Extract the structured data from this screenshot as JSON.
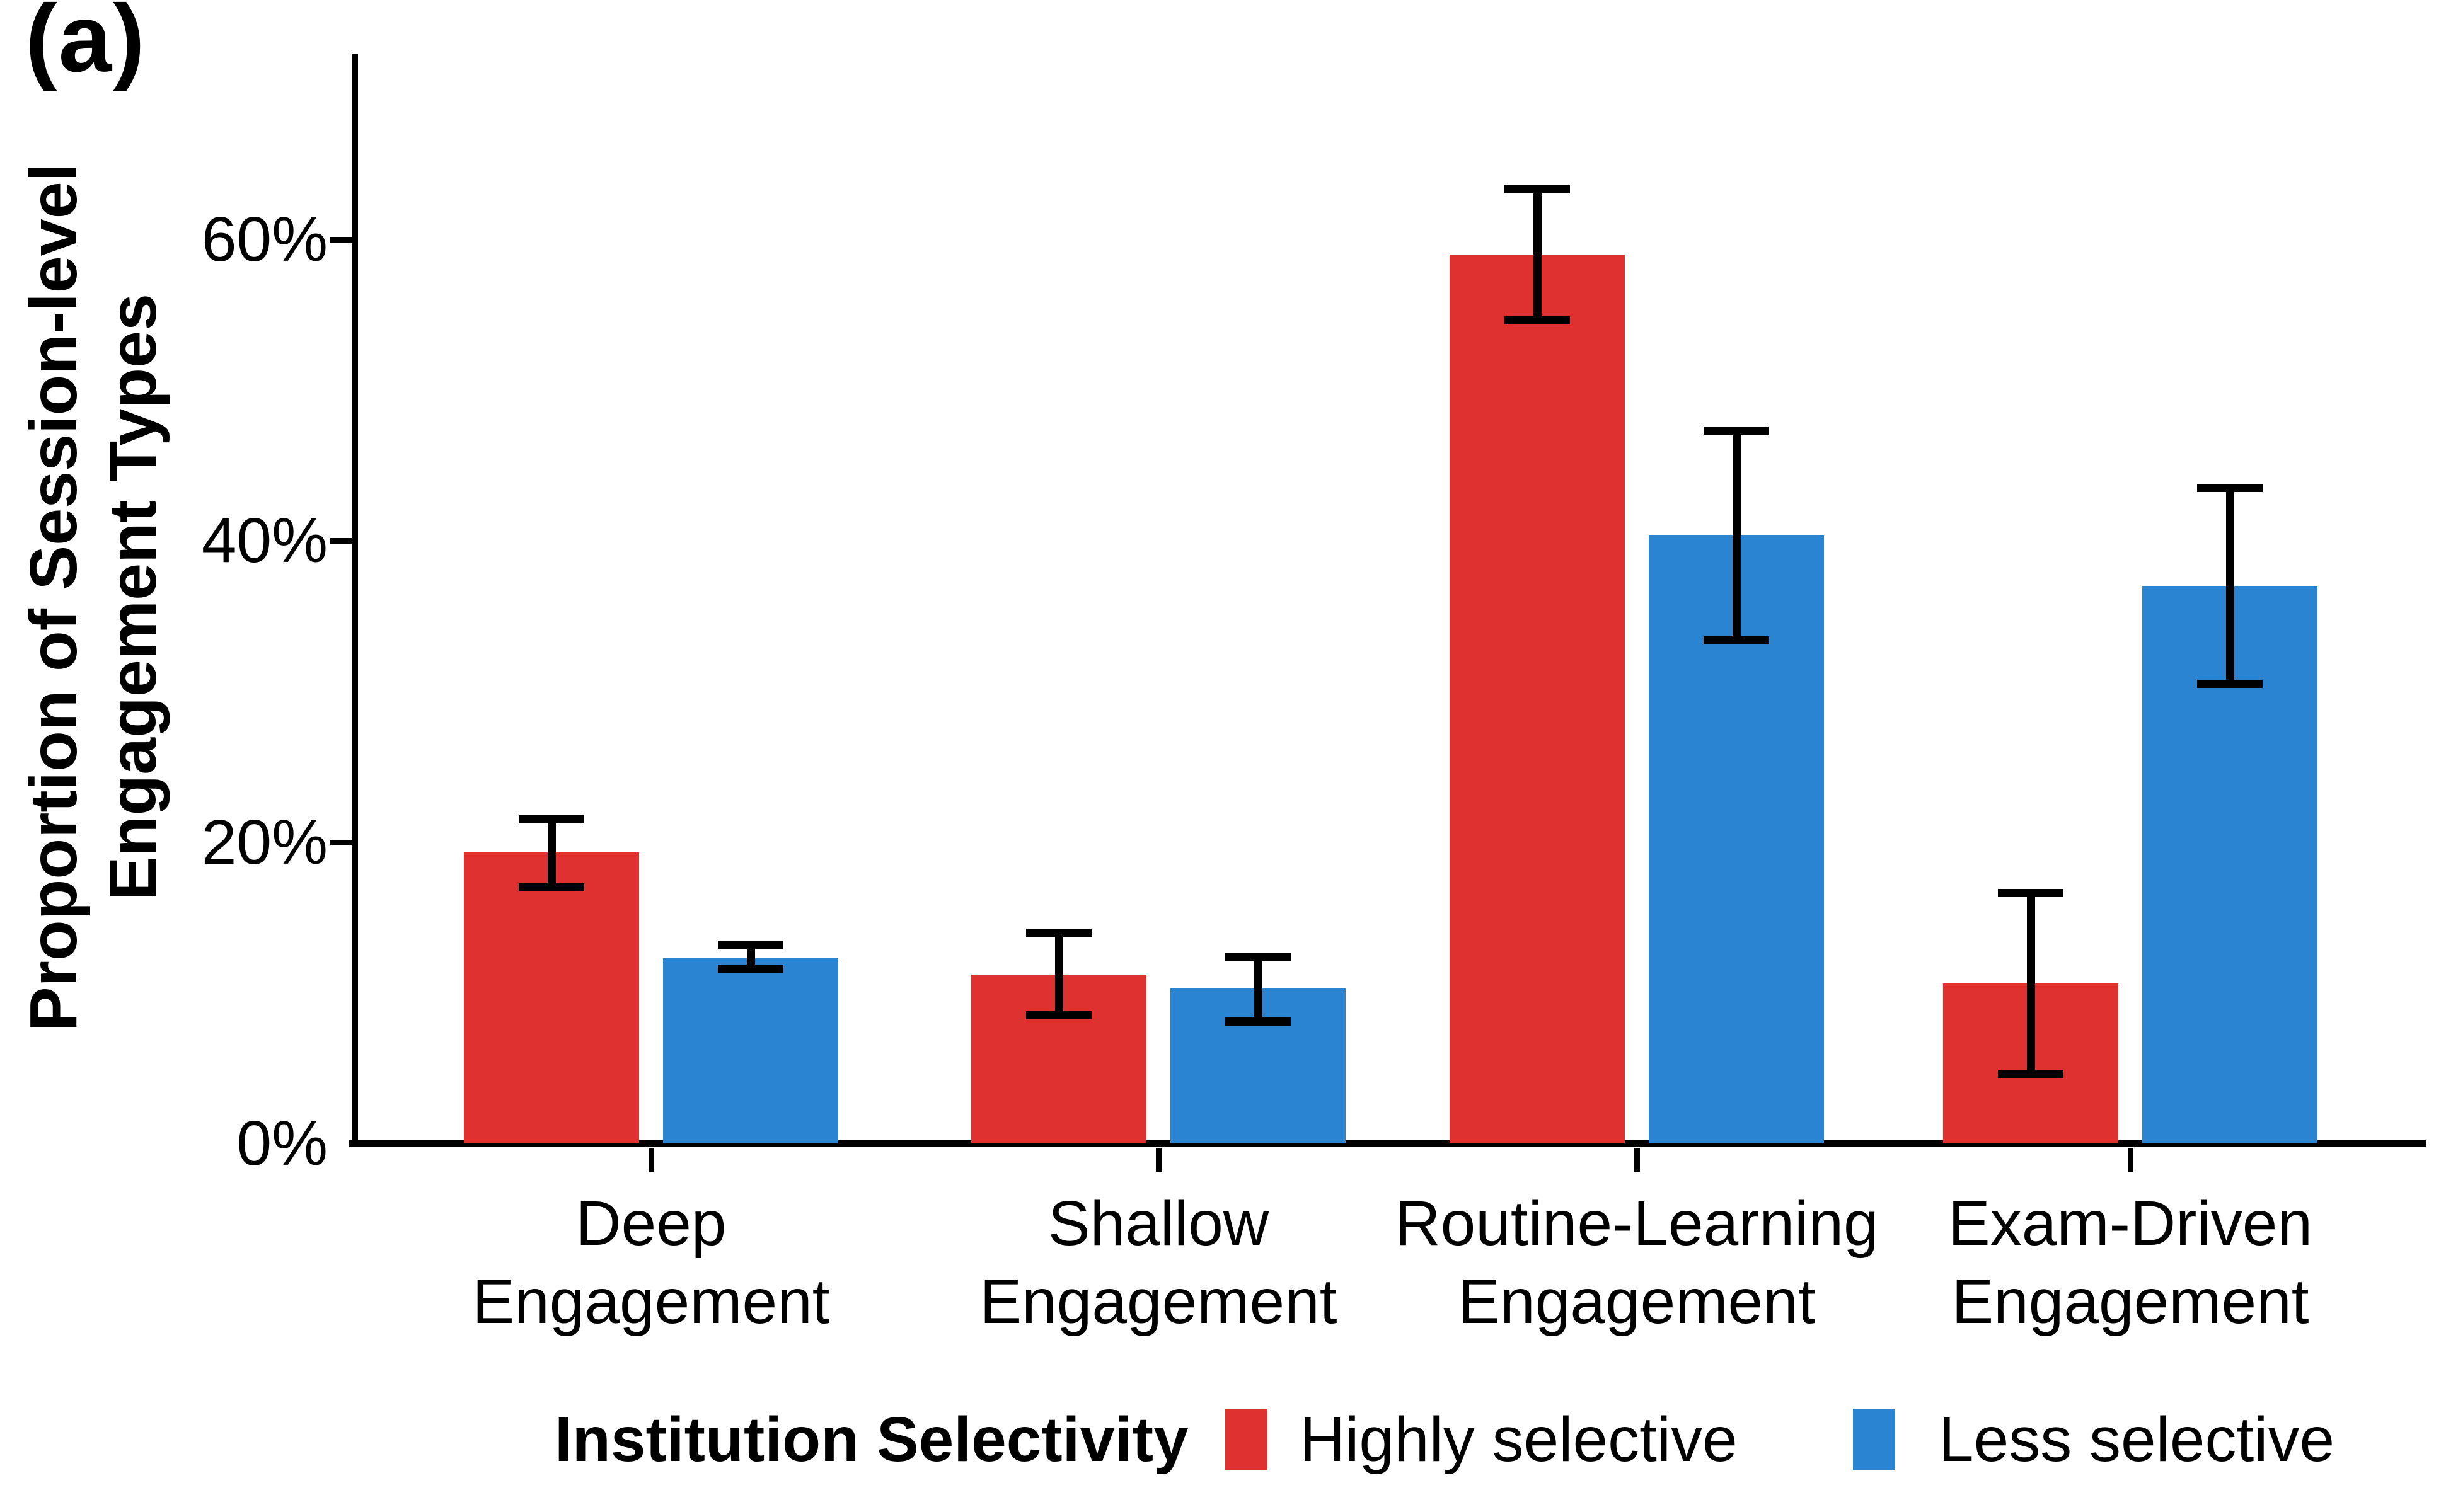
{
  "panel_label": "(a)",
  "chart_data": {
    "type": "bar",
    "title": "",
    "ylabel": "Proportion of Session-level Engagement Types",
    "ylabel_lines": [
      "Proportion of Session-level",
      "Engagement Types"
    ],
    "categories": [
      "Deep\nEngagement",
      "Shallow\nEngagement",
      "Routine-Learning\nEngagement",
      "Exam-Driven\nEngagement"
    ],
    "yticks": [
      0,
      20,
      40,
      60
    ],
    "ytick_labels": [
      "0%",
      "20%",
      "40%",
      "60%"
    ],
    "ylim": [
      0,
      72
    ],
    "grid": false,
    "error_bars": true,
    "legend_position": "bottom",
    "legend_title": "Institution Selectivity",
    "series": [
      {
        "name": "Highly selective",
        "color": "#DF3230",
        "values": [
          19.3,
          11.2,
          59.0,
          10.6
        ],
        "ci_low": [
          17.0,
          8.5,
          54.6,
          4.6
        ],
        "ci_high": [
          21.5,
          14.0,
          63.3,
          16.6
        ]
      },
      {
        "name": "Less selective",
        "color": "#2A84D2",
        "values": [
          12.3,
          10.3,
          40.4,
          37.0
        ],
        "ci_low": [
          11.6,
          8.1,
          33.4,
          30.5
        ],
        "ci_high": [
          13.2,
          12.4,
          47.3,
          43.5
        ]
      }
    ]
  }
}
